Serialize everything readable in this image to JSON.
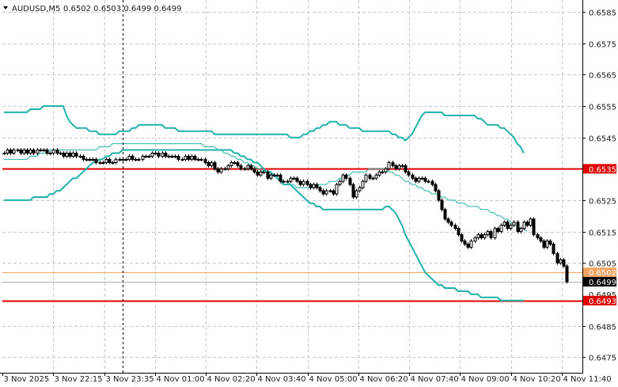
{
  "header": {
    "symbol": "AUDUSD,M5",
    "ohlc": "0.6502 0.6503 0.6499 0.6499"
  },
  "colors": {
    "background": "#ffffff",
    "grid": "#c8c8c8",
    "axis": "#000000",
    "candle": "#000000",
    "bollinger": "#20b2aa",
    "ma": "#20b2aa",
    "support_resistance": "#e00000",
    "bid_line": "#b0b0b0",
    "ask_line": "#f4a460",
    "crosshair": "#000000"
  },
  "chart_data": {
    "type": "candlestick",
    "symbol": "AUDUSD,M5",
    "ylim": [
      0.647,
      0.65888
    ],
    "y_ticks": [
      "0.6585",
      "0.6575",
      "0.6565",
      "0.6555",
      "0.6545",
      "0.6525",
      "0.6515",
      "0.6505",
      "0.6485",
      "0.6475"
    ],
    "x_ticks": [
      "3 Nov 2025",
      "3 Nov 22:15",
      "3 Nov 23:35",
      "4 Nov 01:00",
      "4 Nov 02:20",
      "4 Nov 03:40",
      "4 Nov 05:00",
      "4 Nov 06:20",
      "4 Nov 07:40",
      "4 Nov 09:00",
      "4 Nov 10:20",
      "4 Nov 11:40"
    ],
    "horizontal_lines": [
      {
        "label": "0.6535",
        "value": 0.6535,
        "style": "support_resistance"
      },
      {
        "label": "0.6493",
        "value": 0.6493,
        "style": "support_resistance"
      }
    ],
    "price_tags": [
      {
        "label": "0.6502",
        "value": 0.6502,
        "style": "ask"
      },
      {
        "label": "0.6499",
        "value": 0.6499,
        "style": "bid"
      }
    ],
    "overlapped_tick_label": "0.6495",
    "crosshair_index": 36,
    "bollinger_upper": [
      0.6553,
      0.6553,
      0.6553,
      0.6553,
      0.6553,
      0.6553,
      0.6553,
      0.6553,
      0.6554,
      0.6554,
      0.6554,
      0.6554,
      0.6555,
      0.6555,
      0.6555,
      0.6555,
      0.6555,
      0.6555,
      0.6555,
      0.6552,
      0.655,
      0.6549,
      0.6548,
      0.6548,
      0.6548,
      0.6548,
      0.6547,
      0.6547,
      0.6547,
      0.6546,
      0.6546,
      0.6546,
      0.6546,
      0.6546,
      0.6546,
      0.6547,
      0.6547,
      0.6547,
      0.6547,
      0.6548,
      0.6548,
      0.6549,
      0.6549,
      0.6549,
      0.6549,
      0.6549,
      0.6549,
      0.6549,
      0.6549,
      0.6548,
      0.6548,
      0.6548,
      0.6548,
      0.6547,
      0.6547,
      0.6547,
      0.6547,
      0.6547,
      0.6547,
      0.6547,
      0.6547,
      0.6547,
      0.6547,
      0.6547,
      0.6546,
      0.6546,
      0.6546,
      0.6546,
      0.6546,
      0.6546,
      0.6546,
      0.6546,
      0.6546,
      0.6546,
      0.6546,
      0.6546,
      0.6546,
      0.6546,
      0.6546,
      0.6546,
      0.6546,
      0.6546,
      0.6546,
      0.6546,
      0.6546,
      0.6546,
      0.6546,
      0.6545,
      0.6545,
      0.6545,
      0.6545,
      0.6546,
      0.6546,
      0.6547,
      0.6547,
      0.6548,
      0.6548,
      0.6549,
      0.6549,
      0.655,
      0.655,
      0.655,
      0.6549,
      0.6549,
      0.6549,
      0.6548,
      0.6548,
      0.6548,
      0.6548,
      0.6547,
      0.6547,
      0.6547,
      0.6547,
      0.6547,
      0.6547,
      0.6547,
      0.6547,
      0.6547,
      0.6546,
      0.6546,
      0.6545,
      0.6545,
      0.6544,
      0.6545,
      0.6546,
      0.6548,
      0.655,
      0.6552,
      0.6553,
      0.6553,
      0.6553,
      0.6553,
      0.6553,
      0.6553,
      0.6552,
      0.6552,
      0.6552,
      0.6552,
      0.6552,
      0.6552,
      0.6552,
      0.6552,
      0.6552,
      0.6552,
      0.6551,
      0.6551,
      0.655,
      0.6549,
      0.6549,
      0.6549,
      0.6549,
      0.6548,
      0.6548,
      0.6547,
      0.6546,
      0.6545,
      0.6543,
      0.6542,
      0.654
    ],
    "bollinger_lower": [
      0.6525,
      0.6525,
      0.6525,
      0.6525,
      0.6525,
      0.6525,
      0.6525,
      0.6525,
      0.6525,
      0.6526,
      0.6526,
      0.6526,
      0.6526,
      0.6526,
      0.6527,
      0.6527,
      0.6528,
      0.6528,
      0.6529,
      0.653,
      0.6531,
      0.6532,
      0.6532,
      0.6533,
      0.6534,
      0.6535,
      0.6536,
      0.6537,
      0.6537,
      0.6538,
      0.6538,
      0.6539,
      0.6539,
      0.654,
      0.654,
      0.654,
      0.6541,
      0.6541,
      0.6541,
      0.6541,
      0.6541,
      0.6541,
      0.6541,
      0.6541,
      0.6541,
      0.6541,
      0.6541,
      0.6541,
      0.6541,
      0.6541,
      0.6541,
      0.6541,
      0.6541,
      0.6541,
      0.6541,
      0.6541,
      0.6541,
      0.6541,
      0.6541,
      0.6541,
      0.6541,
      0.6541,
      0.6541,
      0.6541,
      0.6541,
      0.6541,
      0.6541,
      0.6541,
      0.6541,
      0.6541,
      0.654,
      0.654,
      0.6539,
      0.6539,
      0.6538,
      0.6538,
      0.6537,
      0.6537,
      0.6536,
      0.6535,
      0.6534,
      0.6534,
      0.6533,
      0.6532,
      0.6531,
      0.653,
      0.653,
      0.653,
      0.6529,
      0.6528,
      0.6527,
      0.6526,
      0.6525,
      0.6524,
      0.6524,
      0.6523,
      0.6523,
      0.6522,
      0.6522,
      0.6522,
      0.6522,
      0.6522,
      0.6522,
      0.6522,
      0.6522,
      0.6522,
      0.6522,
      0.6522,
      0.6522,
      0.6522,
      0.6522,
      0.6522,
      0.6522,
      0.6522,
      0.6522,
      0.6522,
      0.6523,
      0.6523,
      0.6522,
      0.6521,
      0.6519,
      0.6517,
      0.6514,
      0.6512,
      0.651,
      0.6508,
      0.6506,
      0.6504,
      0.6502,
      0.6501,
      0.65,
      0.6499,
      0.6498,
      0.6498,
      0.6497,
      0.6497,
      0.6497,
      0.6497,
      0.6496,
      0.6496,
      0.6496,
      0.6496,
      0.6495,
      0.6495,
      0.6495,
      0.6494,
      0.6494,
      0.6494,
      0.6494,
      0.6494,
      0.6494,
      0.6493,
      0.6493,
      0.6493,
      0.6493,
      0.6493,
      0.6493,
      0.6493,
      0.6493
    ],
    "ma": [
      0.6538,
      0.6538,
      0.6538,
      0.6538,
      0.6538,
      0.6538,
      0.6538,
      0.6538,
      0.6539,
      0.6539,
      0.6539,
      0.654,
      0.654,
      0.654,
      0.6541,
      0.6541,
      0.6541,
      0.6541,
      0.6541,
      0.6541,
      0.6541,
      0.6541,
      0.6541,
      0.6541,
      0.6541,
      0.6541,
      0.6541,
      0.6541,
      0.6541,
      0.6542,
      0.6542,
      0.6542,
      0.6542,
      0.6543,
      0.6543,
      0.6543,
      0.6543,
      0.6543,
      0.6543,
      0.6543,
      0.6543,
      0.6543,
      0.6543,
      0.6543,
      0.6543,
      0.6543,
      0.6543,
      0.6543,
      0.6543,
      0.6543,
      0.6543,
      0.6543,
      0.6543,
      0.6543,
      0.6543,
      0.6543,
      0.6543,
      0.6543,
      0.6543,
      0.6543,
      0.6543,
      0.6542,
      0.6542,
      0.6542,
      0.6542,
      0.6541,
      0.6541,
      0.654,
      0.654,
      0.6539,
      0.6539,
      0.6538,
      0.6538,
      0.6537,
      0.6537,
      0.6536,
      0.6536,
      0.6535,
      0.6535,
      0.6534,
      0.6534,
      0.6533,
      0.6533,
      0.6532,
      0.6532,
      0.6531,
      0.6531,
      0.653,
      0.653,
      0.6529,
      0.6529,
      0.6529,
      0.6529,
      0.6529,
      0.653,
      0.653,
      0.653,
      0.653,
      0.653,
      0.6531,
      0.6531,
      0.6531,
      0.6532,
      0.6532,
      0.6533,
      0.6533,
      0.6534,
      0.6534,
      0.6534,
      0.6534,
      0.6534,
      0.6535,
      0.6535,
      0.6535,
      0.6535,
      0.6535,
      0.6535,
      0.6534,
      0.6534,
      0.6533,
      0.6533,
      0.6532,
      0.6531,
      0.6531,
      0.653,
      0.653,
      0.6529,
      0.6529,
      0.6528,
      0.6528,
      0.6527,
      0.6527,
      0.6527,
      0.6526,
      0.6526,
      0.6525,
      0.6525,
      0.6525,
      0.6524,
      0.6524,
      0.6524,
      0.6523,
      0.6523,
      0.6523,
      0.6523,
      0.6522,
      0.6522,
      0.6522,
      0.6521,
      0.6521,
      0.652,
      0.652,
      0.6519,
      0.6519,
      0.6518,
      0.6517,
      0.6517,
      0.6516,
      0.6516,
      0.6515
    ],
    "closes": [
      0.654,
      0.6541,
      0.654,
      0.6541,
      0.6541,
      0.654,
      0.6541,
      0.654,
      0.6541,
      0.654,
      0.6541,
      0.6541,
      0.6541,
      0.654,
      0.654,
      0.6541,
      0.654,
      0.654,
      0.6539,
      0.654,
      0.6539,
      0.654,
      0.6539,
      0.6539,
      0.6538,
      0.6538,
      0.6538,
      0.6538,
      0.6537,
      0.6537,
      0.6537,
      0.6538,
      0.6537,
      0.6537,
      0.6538,
      0.6538,
      0.6538,
      0.6538,
      0.6539,
      0.6538,
      0.6538,
      0.6538,
      0.6539,
      0.6539,
      0.6539,
      0.654,
      0.654,
      0.6539,
      0.654,
      0.6539,
      0.6539,
      0.6539,
      0.6539,
      0.6538,
      0.6538,
      0.6539,
      0.6538,
      0.6539,
      0.6538,
      0.6538,
      0.6538,
      0.6537,
      0.6536,
      0.6537,
      0.6535,
      0.6534,
      0.6535,
      0.6535,
      0.6536,
      0.6537,
      0.6537,
      0.6536,
      0.6535,
      0.6535,
      0.6536,
      0.6535,
      0.6534,
      0.6533,
      0.6534,
      0.6534,
      0.6532,
      0.6533,
      0.6533,
      0.6533,
      0.6531,
      0.6531,
      0.6531,
      0.6532,
      0.6532,
      0.6531,
      0.653,
      0.6531,
      0.653,
      0.6529,
      0.653,
      0.6529,
      0.6528,
      0.6527,
      0.6528,
      0.6528,
      0.6527,
      0.653,
      0.6531,
      0.6533,
      0.6532,
      0.653,
      0.6526,
      0.6528,
      0.6529,
      0.6531,
      0.6533,
      0.6532,
      0.6532,
      0.6533,
      0.6534,
      0.6534,
      0.6535,
      0.6537,
      0.6536,
      0.6535,
      0.6536,
      0.6536,
      0.6534,
      0.6533,
      0.6532,
      0.6531,
      0.6532,
      0.6532,
      0.6531,
      0.6531,
      0.653,
      0.6528,
      0.6525,
      0.6522,
      0.6519,
      0.6518,
      0.6517,
      0.6516,
      0.6514,
      0.6512,
      0.6511,
      0.651,
      0.6512,
      0.6513,
      0.6514,
      0.6513,
      0.6514,
      0.6515,
      0.6513,
      0.6516,
      0.6515,
      0.6517,
      0.6518,
      0.6516,
      0.6517,
      0.6518,
      0.6515,
      0.6516,
      0.6518,
      0.6517,
      0.6519,
      0.6514,
      0.6513,
      0.6512,
      0.651,
      0.6512,
      0.6511,
      0.6508,
      0.6505,
      0.6506,
      0.6504,
      0.6499
    ]
  }
}
